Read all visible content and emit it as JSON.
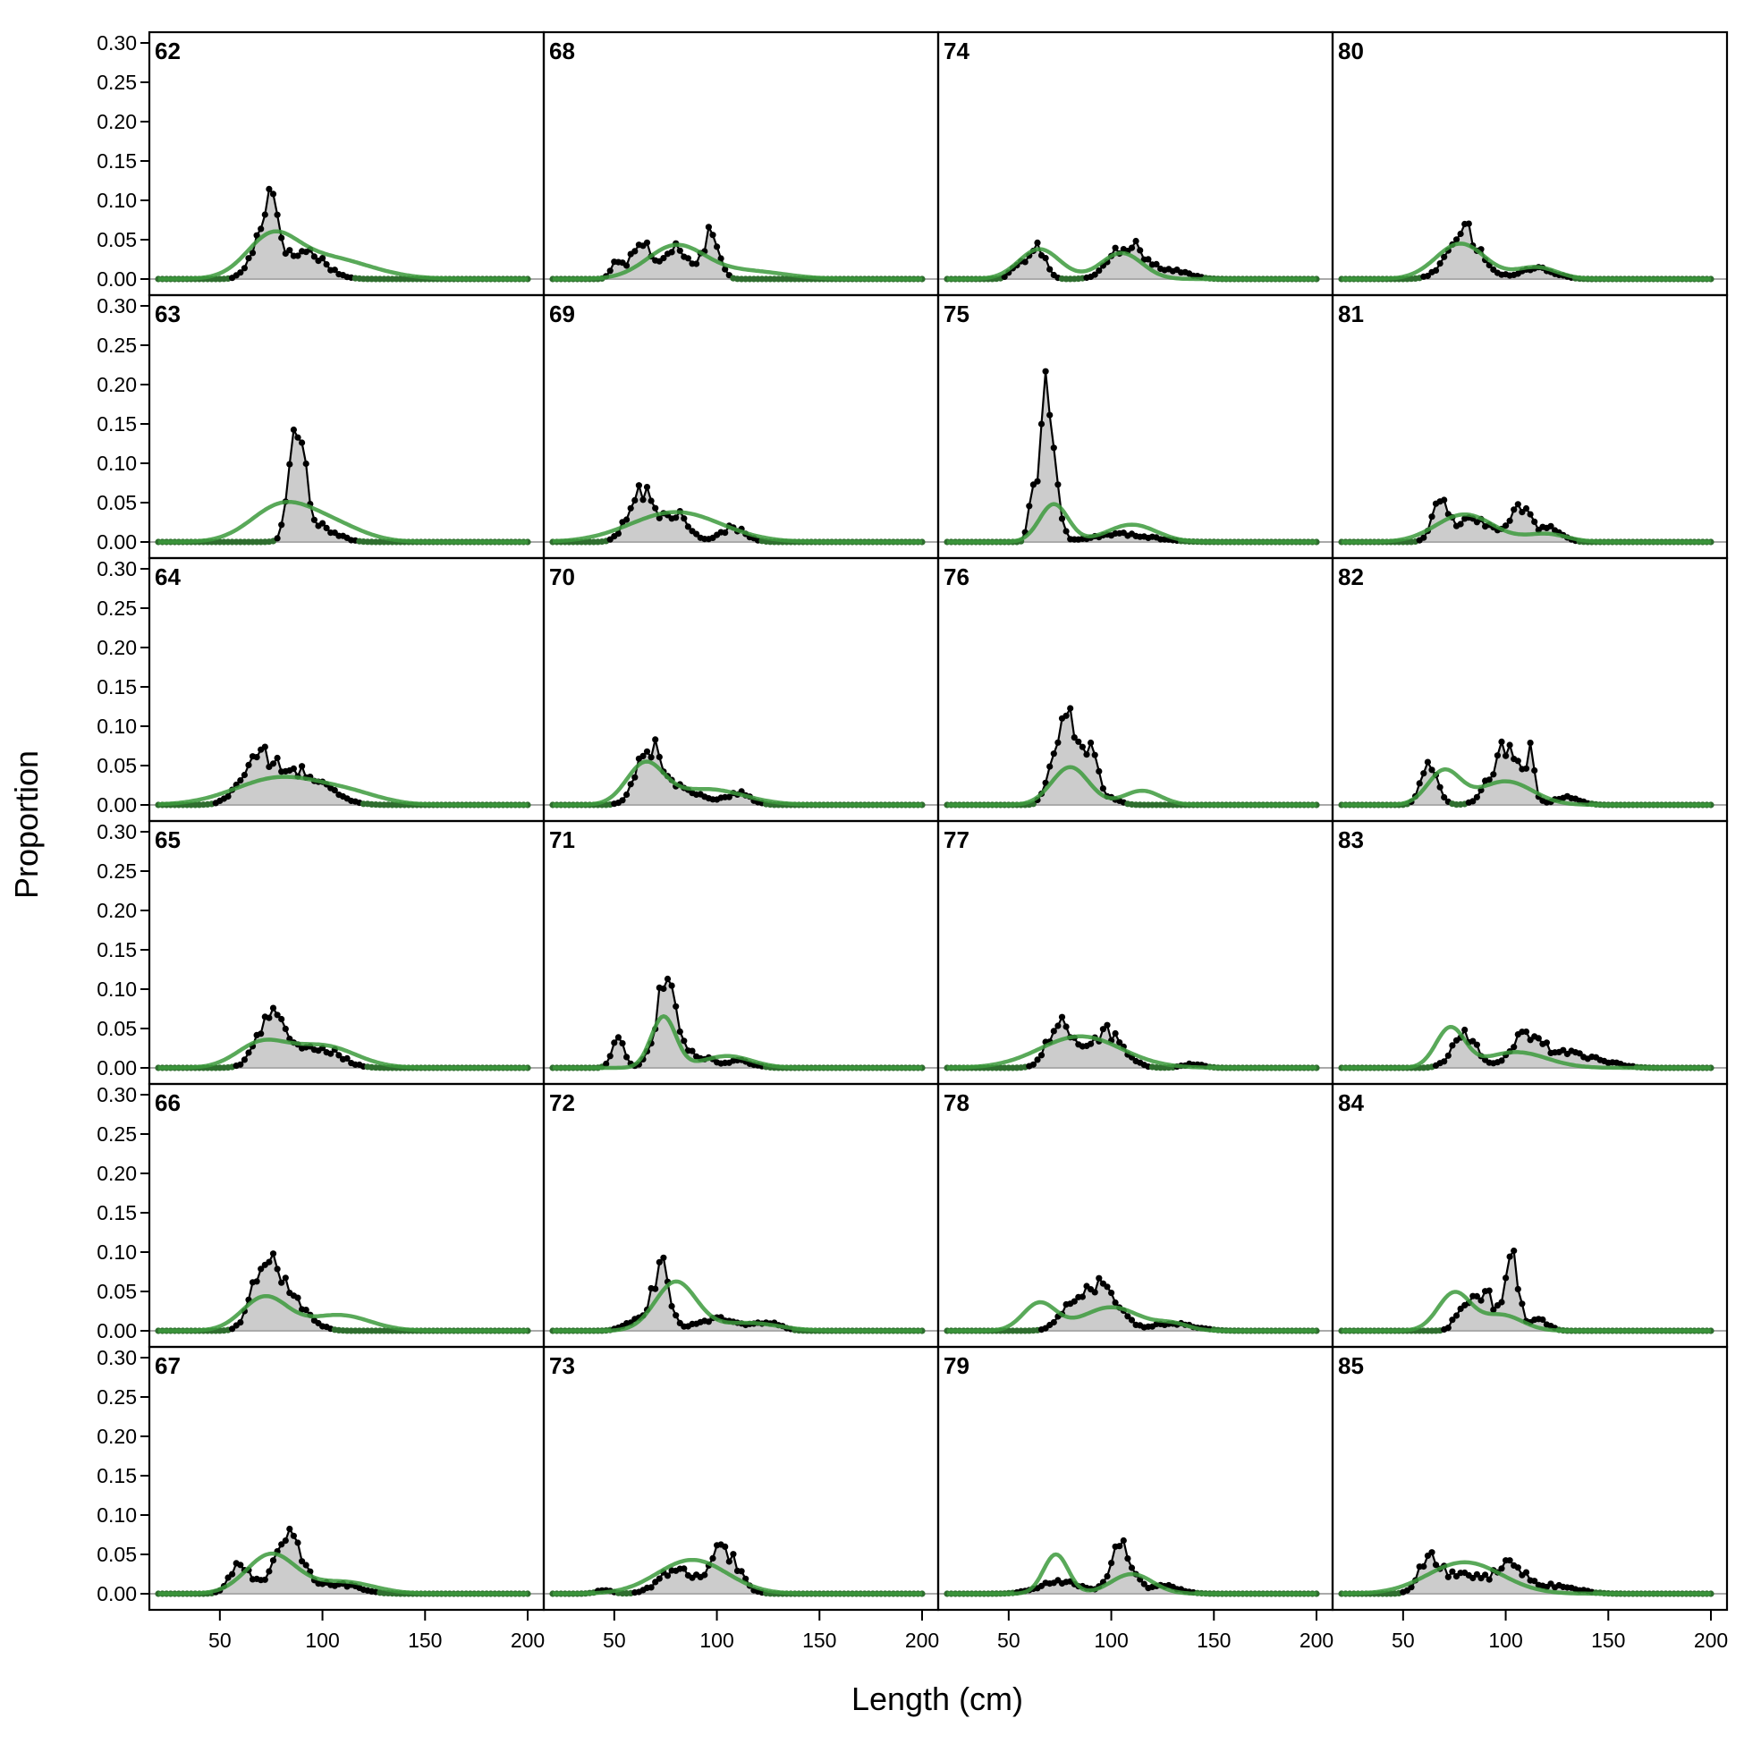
{
  "chart_data": {
    "type": "area",
    "xlabel": "Length (cm)",
    "ylabel": "Proportion",
    "xlim": [
      20,
      200
    ],
    "ylim": [
      0,
      0.3
    ],
    "x_ticks": [
      "50",
      "100",
      "150",
      "200"
    ],
    "y_ticks": [
      "0.00",
      "0.05",
      "0.10",
      "0.15",
      "0.20",
      "0.25",
      "0.30"
    ],
    "grid": false,
    "legend": "none",
    "colors": {
      "observed_fill": "#cccccc",
      "observed_line": "#000000",
      "expected_line": "#3c9a3c",
      "baseline": "#aaaaaa"
    },
    "panels": [
      {
        "label": "62",
        "obs_peaks": [
          [
            75,
            0.095,
            4
          ],
          [
            68,
            0.03,
            5
          ],
          [
            92,
            0.035,
            9
          ]
        ],
        "exp": [
          [
            75,
            0.045,
            12
          ],
          [
            100,
            0.028,
            22
          ]
        ]
      },
      {
        "label": "63",
        "obs_peaks": [
          [
            89,
            0.12,
            3
          ],
          [
            85,
            0.07,
            3
          ],
          [
            98,
            0.02,
            8
          ]
        ],
        "exp": [
          [
            80,
            0.045,
            15
          ],
          [
            105,
            0.02,
            15
          ]
        ]
      },
      {
        "label": "64",
        "obs_peaks": [
          [
            68,
            0.055,
            8
          ],
          [
            90,
            0.04,
            12
          ]
        ],
        "exp": [
          [
            80,
            0.035,
            22
          ],
          [
            115,
            0.01,
            15
          ]
        ]
      },
      {
        "label": "65",
        "obs_peaks": [
          [
            76,
            0.07,
            7
          ],
          [
            100,
            0.025,
            9
          ]
        ],
        "exp": [
          [
            70,
            0.03,
            12
          ],
          [
            100,
            0.028,
            16
          ]
        ]
      },
      {
        "label": "66",
        "obs_peaks": [
          [
            72,
            0.085,
            6
          ],
          [
            85,
            0.04,
            8
          ]
        ],
        "exp": [
          [
            72,
            0.043,
            11
          ],
          [
            108,
            0.02,
            15
          ]
        ]
      },
      {
        "label": "67",
        "obs_peaks": [
          [
            60,
            0.035,
            5
          ],
          [
            83,
            0.07,
            7
          ],
          [
            108,
            0.012,
            10
          ]
        ],
        "exp": [
          [
            75,
            0.05,
            12
          ],
          [
            110,
            0.015,
            15
          ]
        ]
      },
      {
        "label": "68",
        "obs_peaks": [
          [
            52,
            0.025,
            3
          ],
          [
            63,
            0.05,
            4
          ],
          [
            80,
            0.04,
            6
          ],
          [
            97,
            0.055,
            4
          ]
        ],
        "exp": [
          [
            80,
            0.042,
            14
          ],
          [
            115,
            0.01,
            18
          ]
        ]
      },
      {
        "label": "69",
        "obs_peaks": [
          [
            63,
            0.065,
            6
          ],
          [
            80,
            0.035,
            6
          ],
          [
            108,
            0.018,
            6
          ]
        ],
        "exp": [
          [
            80,
            0.038,
            22
          ]
        ]
      },
      {
        "label": "70",
        "obs_peaks": [
          [
            67,
            0.075,
            6
          ],
          [
            85,
            0.02,
            8
          ],
          [
            110,
            0.015,
            6
          ]
        ],
        "exp": [
          [
            65,
            0.05,
            9
          ],
          [
            95,
            0.02,
            18
          ]
        ]
      },
      {
        "label": "71",
        "obs_peaks": [
          [
            52,
            0.04,
            3
          ],
          [
            75,
            0.1,
            5
          ],
          [
            90,
            0.015,
            8
          ],
          [
            112,
            0.008,
            6
          ]
        ],
        "exp": [
          [
            74,
            0.065,
            6
          ],
          [
            105,
            0.015,
            12
          ]
        ]
      },
      {
        "label": "72",
        "obs_peaks": [
          [
            73,
            0.08,
            4
          ],
          [
            62,
            0.015,
            6
          ],
          [
            100,
            0.015,
            10
          ],
          [
            125,
            0.01,
            6
          ]
        ],
        "exp": [
          [
            80,
            0.062,
            10
          ],
          [
            115,
            0.01,
            15
          ]
        ]
      },
      {
        "label": "73",
        "obs_peaks": [
          [
            103,
            0.055,
            7
          ],
          [
            80,
            0.03,
            8
          ],
          [
            45,
            0.004,
            4
          ]
        ],
        "exp": [
          [
            88,
            0.043,
            17
          ]
        ]
      },
      {
        "label": "74",
        "obs_peaks": [
          [
            64,
            0.04,
            4
          ],
          [
            55,
            0.015,
            4
          ],
          [
            108,
            0.045,
            8
          ],
          [
            130,
            0.01,
            8
          ]
        ],
        "exp": [
          [
            65,
            0.038,
            10
          ],
          [
            105,
            0.033,
            10
          ]
        ]
      },
      {
        "label": "75",
        "obs_peaks": [
          [
            68,
            0.17,
            2
          ],
          [
            62,
            0.09,
            2
          ],
          [
            72,
            0.08,
            3
          ],
          [
            105,
            0.01,
            14
          ]
        ],
        "exp": [
          [
            72,
            0.048,
            7
          ],
          [
            110,
            0.022,
            12
          ]
        ]
      },
      {
        "label": "76",
        "obs_peaks": [
          [
            80,
            0.1,
            4
          ],
          [
            73,
            0.07,
            4
          ],
          [
            90,
            0.07,
            3
          ],
          [
            98,
            0.01,
            5
          ]
        ],
        "exp": [
          [
            80,
            0.048,
            9
          ],
          [
            115,
            0.018,
            9
          ]
        ]
      },
      {
        "label": "77",
        "obs_peaks": [
          [
            75,
            0.055,
            6
          ],
          [
            98,
            0.045,
            8
          ],
          [
            140,
            0.005,
            5
          ]
        ],
        "exp": [
          [
            85,
            0.04,
            20
          ]
        ]
      },
      {
        "label": "78",
        "obs_peaks": [
          [
            95,
            0.058,
            8
          ],
          [
            80,
            0.025,
            6
          ],
          [
            130,
            0.01,
            10
          ]
        ],
        "exp": [
          [
            65,
            0.035,
            8
          ],
          [
            100,
            0.03,
            14
          ],
          [
            130,
            0.008,
            8
          ]
        ]
      },
      {
        "label": "79",
        "obs_peaks": [
          [
            105,
            0.065,
            5
          ],
          [
            75,
            0.015,
            10
          ],
          [
            125,
            0.01,
            8
          ]
        ],
        "exp": [
          [
            73,
            0.05,
            6
          ],
          [
            110,
            0.025,
            10
          ]
        ]
      },
      {
        "label": "80",
        "obs_peaks": [
          [
            80,
            0.06,
            8
          ],
          [
            115,
            0.015,
            8
          ]
        ],
        "exp": [
          [
            78,
            0.045,
            12
          ],
          [
            115,
            0.015,
            10
          ]
        ]
      },
      {
        "label": "81",
        "obs_peaks": [
          [
            68,
            0.045,
            4
          ],
          [
            85,
            0.03,
            8
          ],
          [
            108,
            0.045,
            5
          ],
          [
            123,
            0.018,
            5
          ]
        ],
        "exp": [
          [
            80,
            0.035,
            14
          ],
          [
            120,
            0.01,
            10
          ]
        ]
      },
      {
        "label": "82",
        "obs_peaks": [
          [
            63,
            0.05,
            4
          ],
          [
            100,
            0.07,
            7
          ],
          [
            112,
            0.055,
            2
          ],
          [
            130,
            0.01,
            6
          ]
        ],
        "exp": [
          [
            70,
            0.043,
            8
          ],
          [
            100,
            0.03,
            13
          ]
        ]
      },
      {
        "label": "83",
        "obs_peaks": [
          [
            80,
            0.04,
            6
          ],
          [
            110,
            0.04,
            7
          ],
          [
            130,
            0.02,
            10
          ],
          [
            150,
            0.005,
            8
          ]
        ],
        "exp": [
          [
            73,
            0.05,
            7
          ],
          [
            105,
            0.02,
            15
          ]
        ]
      },
      {
        "label": "84",
        "obs_peaks": [
          [
            103,
            0.095,
            3
          ],
          [
            90,
            0.045,
            5
          ],
          [
            80,
            0.035,
            4
          ],
          [
            115,
            0.015,
            5
          ]
        ],
        "exp": [
          [
            75,
            0.048,
            8
          ],
          [
            98,
            0.02,
            10
          ]
        ]
      },
      {
        "label": "85",
        "obs_peaks": [
          [
            63,
            0.045,
            5
          ],
          [
            80,
            0.025,
            10
          ],
          [
            103,
            0.035,
            7
          ],
          [
            125,
            0.01,
            10
          ]
        ],
        "exp": [
          [
            80,
            0.04,
            18
          ]
        ]
      }
    ]
  }
}
